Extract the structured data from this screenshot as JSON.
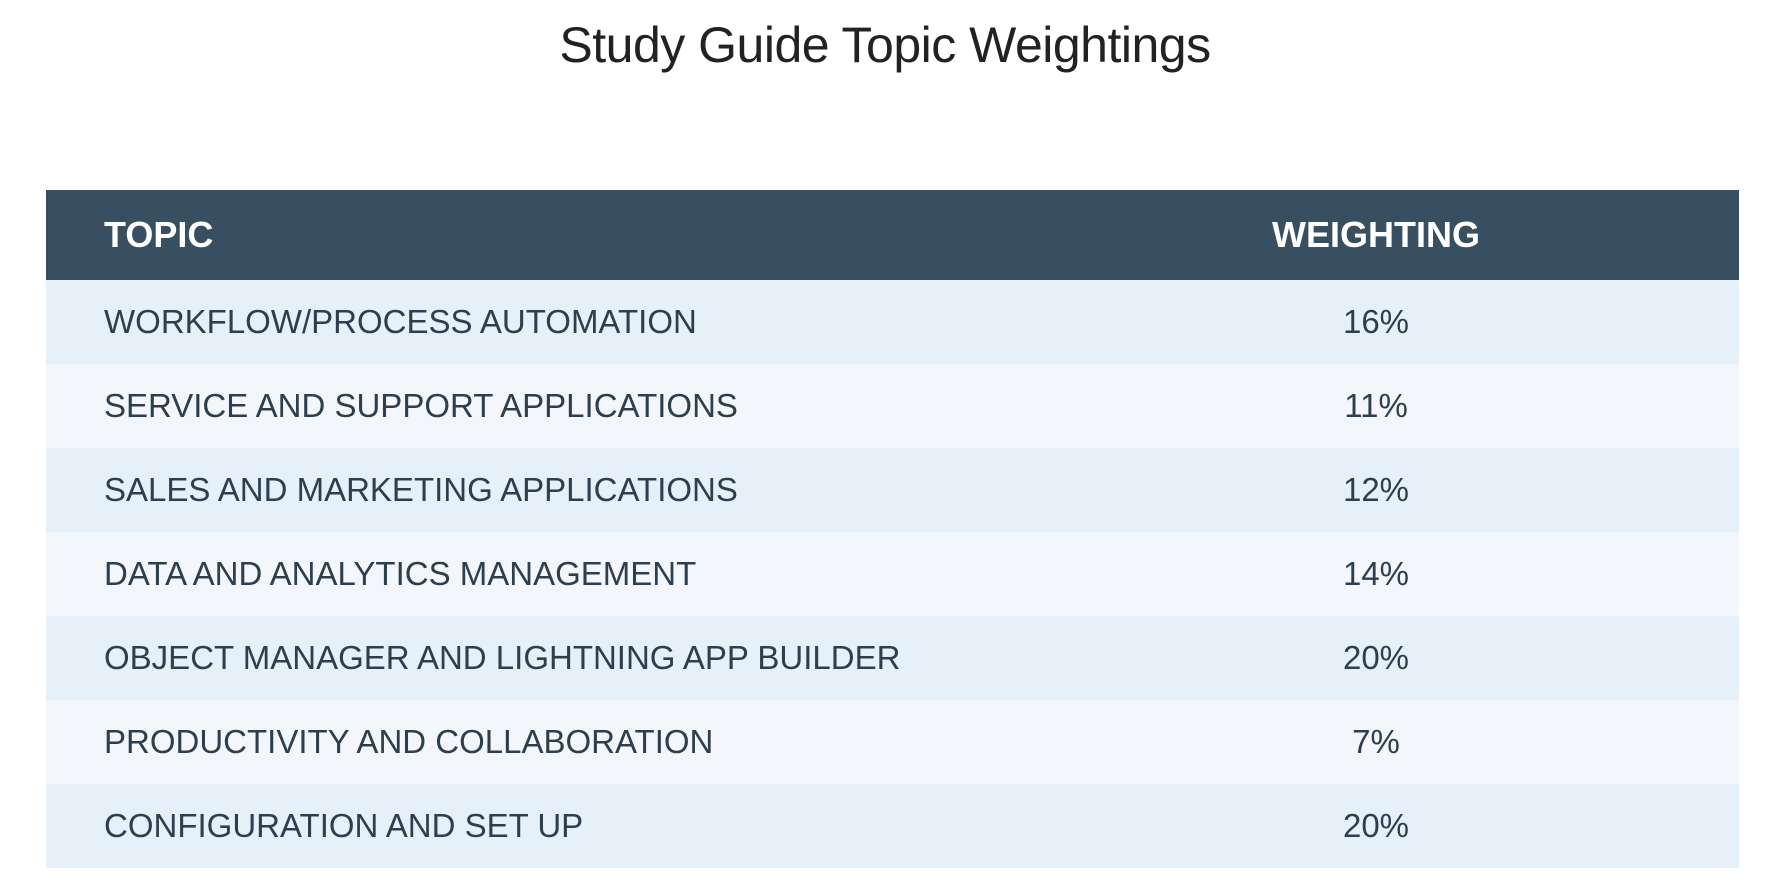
{
  "page": {
    "title": "Study Guide Topic Weightings"
  },
  "table": {
    "headers": {
      "topic": "TOPIC",
      "weighting": "WEIGHTING"
    },
    "rows": [
      {
        "topic": "WORKFLOW/PROCESS AUTOMATION",
        "weighting": "16%"
      },
      {
        "topic": "SERVICE AND SUPPORT APPLICATIONS",
        "weighting": "11%"
      },
      {
        "topic": "SALES AND MARKETING APPLICATIONS",
        "weighting": "12%"
      },
      {
        "topic": "DATA AND ANALYTICS MANAGEMENT",
        "weighting": "14%"
      },
      {
        "topic": "OBJECT MANAGER AND LIGHTNING APP BUILDER",
        "weighting": "20%"
      },
      {
        "topic": "PRODUCTIVITY AND COLLABORATION",
        "weighting": "7%"
      },
      {
        "topic": "CONFIGURATION AND SET UP",
        "weighting": "20%"
      }
    ]
  },
  "colors": {
    "header_background": "#384f61",
    "row_odd": "#e6f0f9",
    "row_even": "#f3f7fb",
    "text": "#2d3f4f"
  }
}
